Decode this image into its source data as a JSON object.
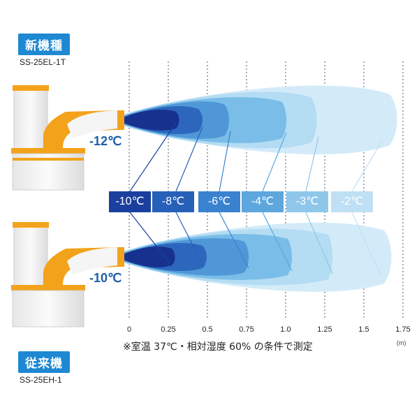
{
  "new_model": {
    "tag": "新機種",
    "model": "SS-25EL-1T",
    "outlet_temp": "-12℃"
  },
  "old_model": {
    "tag": "従来機",
    "model": "SS-25EH-1",
    "outlet_temp": "-10℃"
  },
  "temp_labels": [
    {
      "text": "-10℃",
      "color": "#1a3f9e"
    },
    {
      "text": "-8℃",
      "color": "#2760b8"
    },
    {
      "text": "-6℃",
      "color": "#3a82cf"
    },
    {
      "text": "-4℃",
      "color": "#5da6de"
    },
    {
      "text": "-3℃",
      "color": "#8fc7ea"
    },
    {
      "text": "-2℃",
      "color": "#bfe0f4"
    }
  ],
  "distance_ticks": [
    "0",
    "0.25",
    "0.5",
    "0.75",
    "1.0",
    "1.25",
    "1.5",
    "1.75"
  ],
  "distance_unit": "(m)",
  "note": "※室温 37℃・相対湿度 60% の条件で測定",
  "colors": {
    "tag_bg": "#1e88d2",
    "unit_orange": "#f3a21b",
    "unit_body": "#f3f3f3"
  }
}
